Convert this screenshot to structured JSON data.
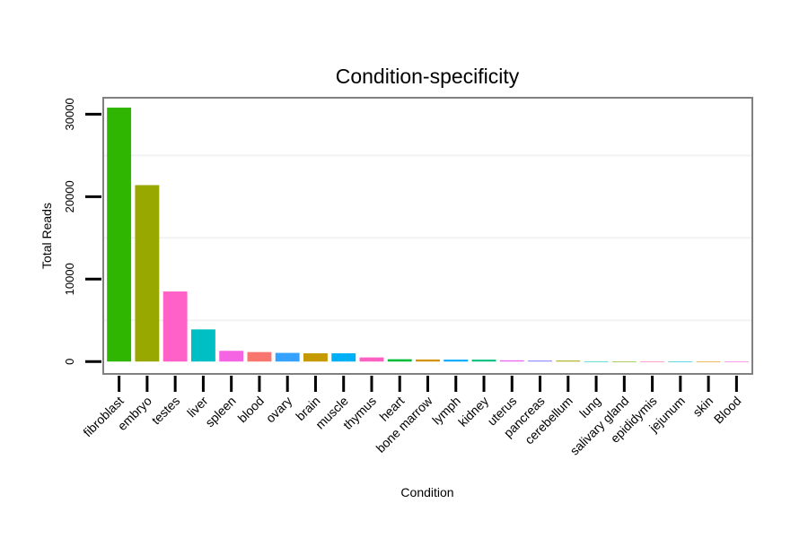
{
  "chart_data": {
    "type": "bar",
    "title": "Condition-specificity",
    "xlabel": "Condition",
    "ylabel": "Total Reads",
    "ylim": [
      -1500,
      32000
    ],
    "yticks": [
      0,
      10000,
      20000,
      30000
    ],
    "categories": [
      "fibroblast",
      "embryo",
      "testes",
      "liver",
      "spleen",
      "blood",
      "ovary",
      "brain",
      "muscle",
      "thymus",
      "heart",
      "bone marrow",
      "lymph",
      "kidney",
      "uterus",
      "pancreas",
      "cerebellum",
      "lung",
      "salivary gland",
      "epididymis",
      "jejunum",
      "skin",
      "Blood"
    ],
    "values": [
      30800,
      21400,
      8500,
      3900,
      1300,
      1150,
      1050,
      1000,
      1000,
      500,
      280,
      250,
      230,
      230,
      150,
      130,
      110,
      30,
      20,
      15,
      10,
      5,
      5
    ],
    "colors": [
      "#2fb600",
      "#99a800",
      "#ff61c9",
      "#00bfc4",
      "#f564e3",
      "#f8766d",
      "#35a2ff",
      "#c49a00",
      "#00b0f6",
      "#ff61c3",
      "#00ba38",
      "#d39200",
      "#00a9ff",
      "#00bf7d",
      "#e76bf3",
      "#9590ff",
      "#a3a500",
      "#00c0af",
      "#7cae00",
      "#ff67a4",
      "#00bcd8",
      "#e38900",
      "#fb61d7"
    ],
    "grid": true,
    "legend": "none"
  }
}
